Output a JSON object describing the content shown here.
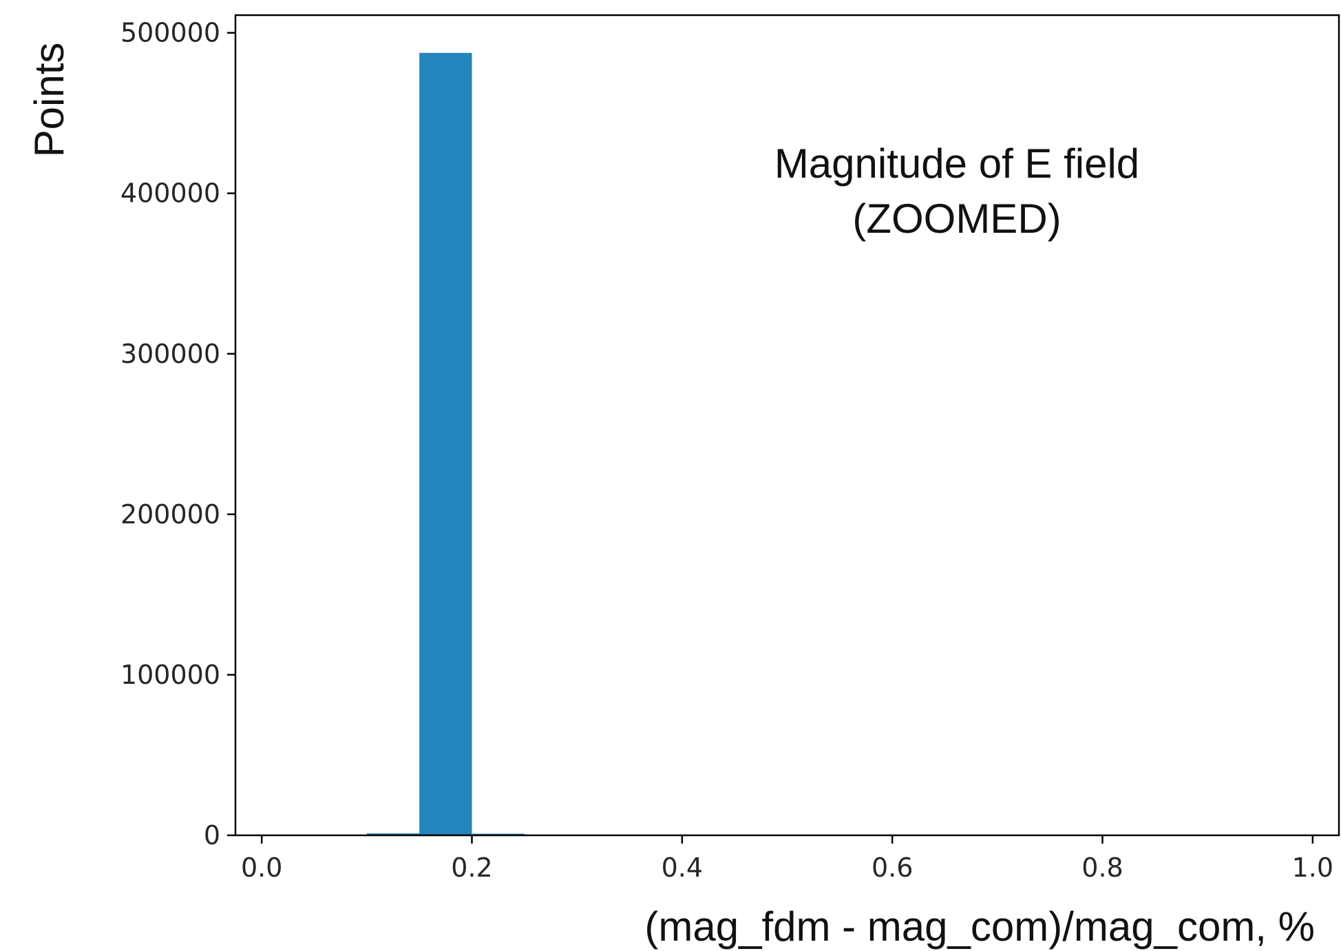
{
  "chart_data": {
    "type": "bar",
    "title": "",
    "annotation_lines": [
      "Magnitude of E field",
      "(ZOOMED)"
    ],
    "xlabel": "(mag_fdm - mag_com)/mag_com, %",
    "ylabel": "Points",
    "xlim": [
      -0.025,
      1.025
    ],
    "ylim": [
      0,
      511000
    ],
    "xticks": [
      0.0,
      0.2,
      0.4,
      0.6,
      0.8,
      1.0
    ],
    "xtick_labels": [
      "0.0",
      "0.2",
      "0.4",
      "0.6",
      "0.8",
      "1.0"
    ],
    "yticks": [
      0,
      100000,
      200000,
      300000,
      400000,
      500000
    ],
    "ytick_labels": [
      "0",
      "100000",
      "200000",
      "300000",
      "400000",
      "500000"
    ],
    "bins": [
      {
        "start": 0.1,
        "end": 0.15,
        "value": 1200
      },
      {
        "start": 0.15,
        "end": 0.2,
        "value": 487500
      },
      {
        "start": 0.2,
        "end": 0.25,
        "value": 1000
      }
    ],
    "bar_color": "#2385bc",
    "grid": false,
    "legend": "none"
  }
}
